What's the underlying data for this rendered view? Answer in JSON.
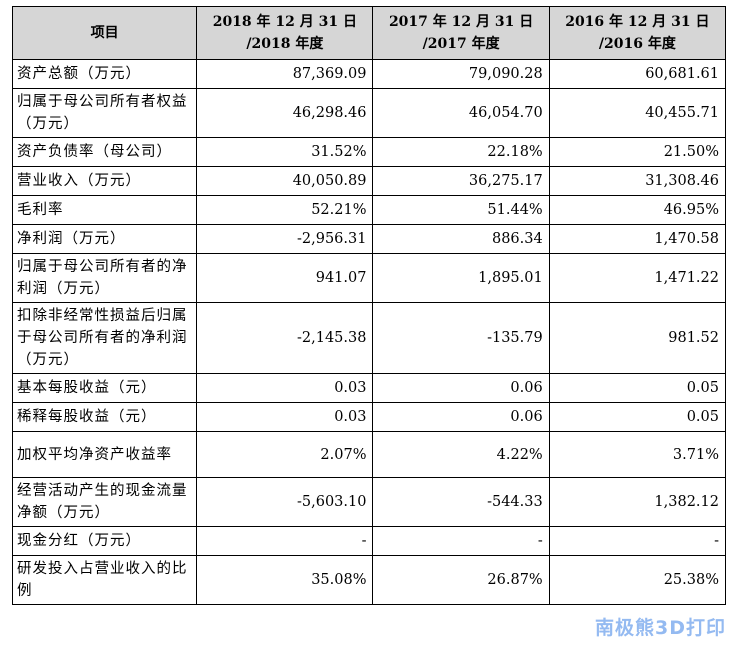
{
  "table": {
    "headers": {
      "item": "项目",
      "col1_line1": "2018 年 12 月 31 日",
      "col1_line2": "/2018 年度",
      "col2_line1": "2017 年 12 月 31 日",
      "col2_line2": "/2017 年度",
      "col3_line1": "2016 年 12 月 31 日",
      "col3_line2": "/2016 年度"
    },
    "rows": [
      {
        "label": "资产总额（万元）",
        "v2018": "87,369.09",
        "v2017": "79,090.28",
        "v2016": "60,681.61"
      },
      {
        "label": "归属于母公司所有者权益（万元）",
        "v2018": "46,298.46",
        "v2017": "46,054.70",
        "v2016": "40,455.71"
      },
      {
        "label": "资产负债率（母公司）",
        "v2018": "31.52%",
        "v2017": "22.18%",
        "v2016": "21.50%"
      },
      {
        "label": "营业收入（万元）",
        "v2018": "40,050.89",
        "v2017": "36,275.17",
        "v2016": "31,308.46"
      },
      {
        "label": "毛利率",
        "v2018": "52.21%",
        "v2017": "51.44%",
        "v2016": "46.95%"
      },
      {
        "label": "净利润（万元）",
        "v2018": "-2,956.31",
        "v2017": "886.34",
        "v2016": "1,470.58"
      },
      {
        "label": "归属于母公司所有者的净利润（万元）",
        "v2018": "941.07",
        "v2017": "1,895.01",
        "v2016": "1,471.22"
      },
      {
        "label": "扣除非经常性损益后归属于母公司所有者的净利润（万元）",
        "v2018": "-2,145.38",
        "v2017": "-135.79",
        "v2016": "981.52"
      },
      {
        "label": "基本每股收益（元）",
        "v2018": "0.03",
        "v2017": "0.06",
        "v2016": "0.05"
      },
      {
        "label": "稀释每股收益（元）",
        "v2018": "0.03",
        "v2017": "0.06",
        "v2016": "0.05"
      },
      {
        "label": "加权平均净资产收益率",
        "v2018": "2.07%",
        "v2017": "4.22%",
        "v2016": "3.71%"
      },
      {
        "label": "经营活动产生的现金流量净额（万元）",
        "v2018": "-5,603.10",
        "v2017": "-544.33",
        "v2016": "1,382.12"
      },
      {
        "label": "现金分红（万元）",
        "v2018": "-",
        "v2017": "-",
        "v2016": "-"
      },
      {
        "label": "研发投入占营业收入的比例",
        "v2018": "35.08%",
        "v2017": "26.87%",
        "v2016": "25.38%"
      }
    ]
  },
  "watermark": "南极熊3D打印"
}
